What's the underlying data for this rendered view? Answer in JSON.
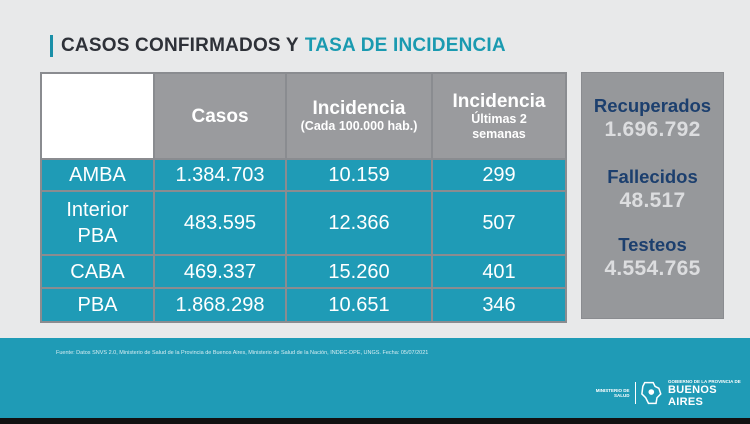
{
  "title": {
    "part1": "CASOS CONFIRMADOS Y",
    "part2": "TASA DE INCIDENCIA"
  },
  "table": {
    "headers": [
      {
        "main": "",
        "sub": ""
      },
      {
        "main": "Casos",
        "sub": ""
      },
      {
        "main": "Incidencia",
        "sub": "(Cada 100.000 hab.)"
      },
      {
        "main": "Incidencia",
        "sub": "Últimas 2\nsemanas"
      }
    ],
    "rows": [
      {
        "region": "AMBA",
        "casos": "1.384.703",
        "incidencia": "10.159",
        "incidencia_2sem": "299"
      },
      {
        "region": "Interior\nPBA",
        "casos": "483.595",
        "incidencia": "12.366",
        "incidencia_2sem": "507"
      },
      {
        "region": "CABA",
        "casos": "469.337",
        "incidencia": "15.260",
        "incidencia_2sem": "401"
      },
      {
        "region": "PBA",
        "casos": "1.868.298",
        "incidencia": "10.651",
        "incidencia_2sem": "346"
      }
    ]
  },
  "side": {
    "recuperados_label": "Recuperados",
    "recuperados_value": "1.696.792",
    "fallecidos_label": "Fallecidos",
    "fallecidos_value": "48.517",
    "testeos_label": "Testeos",
    "testeos_value": "4.554.765"
  },
  "footer": {
    "source": "Fuente: Datos SNVS 2.0, Ministerio de Salud de la Provincia de Buenos Aires, Ministerio de Salud de la Nación, INDEC-DPE, UNGS. Fecha: 05/07/2021",
    "ministerio": "MINISTERIO DE\nSALUD",
    "gov_small": "GOBIERNO DE LA PROVINCIA DE",
    "gov_big": "BUENOS AIRES"
  },
  "colors": {
    "teal": "#1f9bb6",
    "header_gray": "#9a9b9e",
    "navy": "#1c3f6e"
  }
}
